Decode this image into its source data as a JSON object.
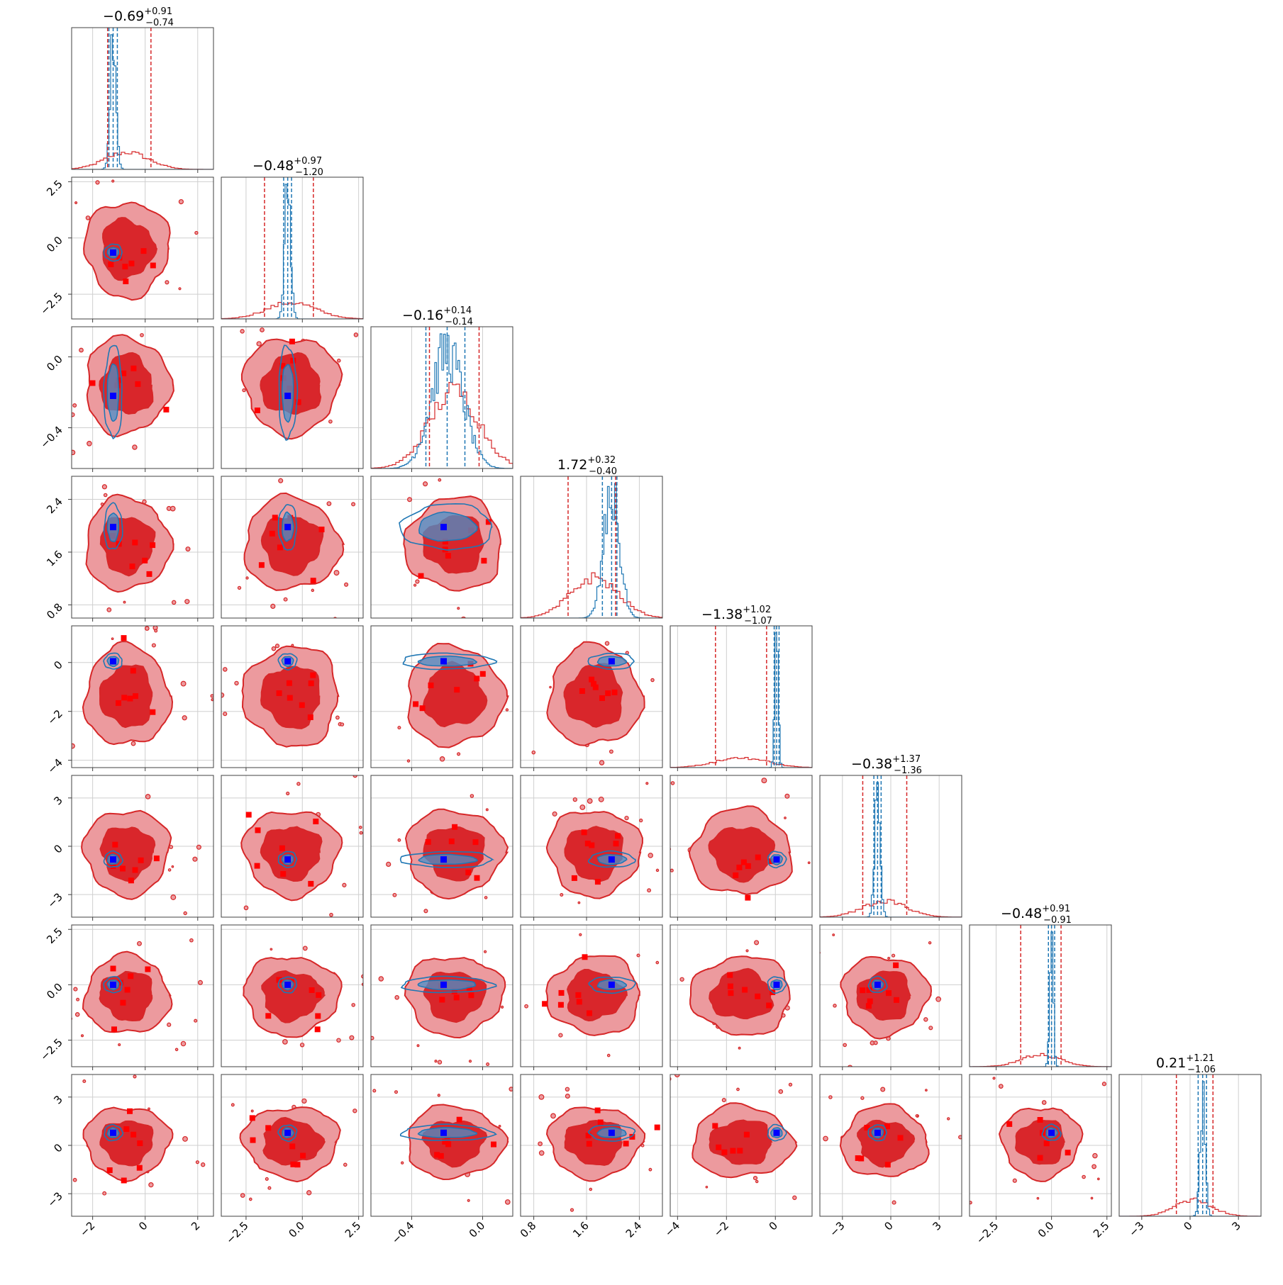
{
  "figure": {
    "type": "corner-plot",
    "n_params": 8
  },
  "colors": {
    "red_line": "#d62728",
    "red_inner_fill": "#d9262b",
    "red_outer_fill": "#ec9a9e",
    "blue_line": "#1f77b4",
    "truth_marker": "#0000ff",
    "red_marker": "#ff0000",
    "grid": "#cfcfcf",
    "axes": "#404040"
  },
  "chart_data": {
    "type": "corner",
    "titles": [
      {
        "median": "−0.69",
        "plus": "+0.91",
        "minus": "−0.74"
      },
      {
        "median": "−0.48",
        "plus": "+0.97",
        "minus": "−1.20"
      },
      {
        "median": "−0.16",
        "plus": "+0.14",
        "minus": "−0.14"
      },
      {
        "median": "1.72",
        "plus": "+0.32",
        "minus": "−0.40"
      },
      {
        "median": "−1.38",
        "plus": "+1.02",
        "minus": "−1.07"
      },
      {
        "median": "−0.38",
        "plus": "+1.37",
        "minus": "−1.36"
      },
      {
        "median": "−0.48",
        "plus": "+0.91",
        "minus": "−0.91"
      },
      {
        "median": "0.21",
        "plus": "+1.21",
        "minus": "−1.06"
      }
    ],
    "ranges": [
      [
        -2.8,
        2.6
      ],
      [
        -3.6,
        2.7
      ],
      [
        -0.63,
        0.17
      ],
      [
        0.6,
        2.75
      ],
      [
        -4.3,
        1.5
      ],
      [
        -4.4,
        4.4
      ],
      [
        -3.7,
        2.7
      ],
      [
        -4.4,
        4.4
      ]
    ],
    "tick_labels": [
      [
        "−2",
        "0",
        "2"
      ],
      [
        "−2.5",
        "0.0",
        "2.5"
      ],
      [
        "−0.4",
        "0.0"
      ],
      [
        "0.8",
        "1.6",
        "2.4"
      ],
      [
        "−4",
        "−2",
        "0"
      ],
      [
        "−3",
        "0",
        "3"
      ],
      [
        "−2.5",
        "0.0",
        "2.5"
      ],
      [
        "−3",
        "0",
        "3"
      ]
    ],
    "tick_values": [
      [
        -2,
        0,
        2
      ],
      [
        -2.5,
        0,
        2.5
      ],
      [
        -0.4,
        0
      ],
      [
        0.8,
        1.6,
        2.4
      ],
      [
        -4,
        -2,
        0
      ],
      [
        -3,
        0,
        3
      ],
      [
        -2.5,
        0,
        2.5
      ],
      [
        -3,
        0,
        3
      ]
    ],
    "red_marginal": {
      "center": [
        -0.69,
        -0.48,
        -0.16,
        1.72,
        -1.38,
        -0.38,
        -0.48,
        0.21
      ],
      "q16": [
        -1.43,
        -1.68,
        -0.3,
        1.32,
        -2.45,
        -1.74,
        -1.39,
        -0.85
      ],
      "q84": [
        0.22,
        0.49,
        -0.02,
        2.04,
        -0.36,
        0.99,
        0.43,
        1.42
      ]
    },
    "blue_marginal": {
      "center": [
        -1.22,
        -0.65,
        -0.2,
        1.98,
        0.05,
        -0.82,
        0.0,
        0.78
      ],
      "q16": [
        -1.38,
        -0.83,
        -0.32,
        1.84,
        -0.05,
        -1.05,
        -0.14,
        0.5
      ],
      "q84": [
        -1.06,
        -0.48,
        -0.1,
        2.06,
        0.15,
        -0.6,
        0.14,
        1.02
      ],
      "width": [
        0.11,
        0.13,
        0.09,
        0.12,
        0.07,
        0.17,
        0.08,
        0.16
      ]
    },
    "truth": [
      -1.22,
      -0.65,
      -0.22,
      1.98,
      0.05,
      -0.82,
      0.0,
      0.78
    ],
    "levels": [
      "1-sigma",
      "2-sigma"
    ]
  }
}
